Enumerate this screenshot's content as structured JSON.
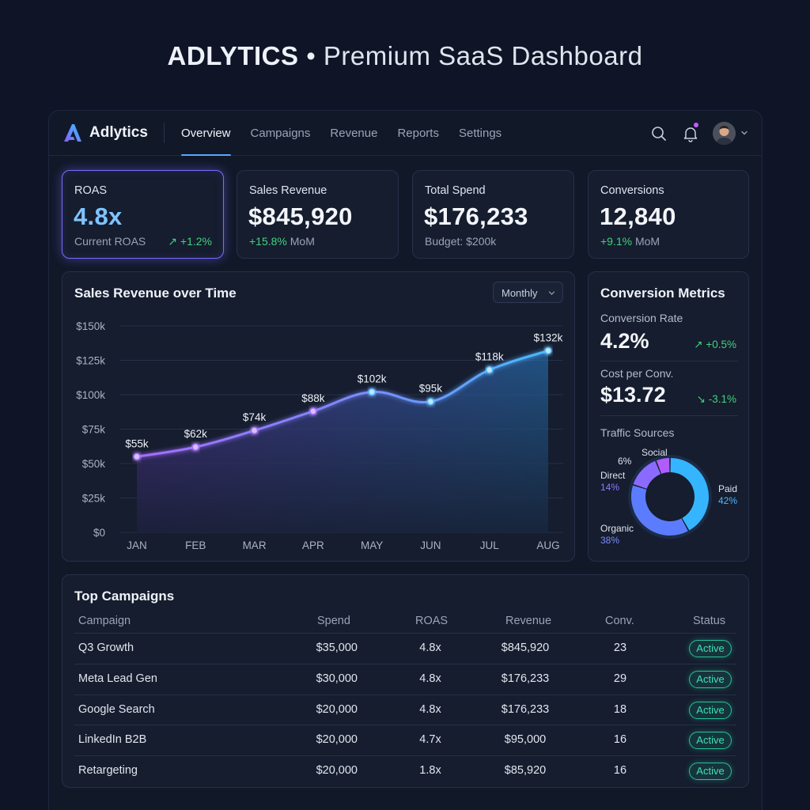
{
  "heading": {
    "brand": "ADLYTICS",
    "separator": "•",
    "rest": "Premium SaaS Dashboard"
  },
  "app": {
    "logo_text": "Adlytics",
    "nav": [
      "Overview",
      "Campaigns",
      "Revenue",
      "Reports",
      "Settings"
    ],
    "active_nav": "Overview",
    "icons": [
      "search-icon",
      "bell-icon",
      "avatar",
      "chevron-down-icon"
    ],
    "accent_color": "#5aa6ff"
  },
  "kpis": {
    "roas": {
      "label": "ROAS",
      "value": "4.8x",
      "sub": "Current ROAS",
      "delta": "↗ +1.2%"
    },
    "revenue": {
      "label": "Sales Revenue",
      "value": "$845,920",
      "delta": "+15.8%",
      "delta_suffix": " MoM"
    },
    "spend": {
      "label": "Total Spend",
      "value": "$176,233",
      "sub": "Budget: $200k"
    },
    "conversions": {
      "label": "Conversions",
      "value": "12,840",
      "delta": "+9.1%",
      "delta_suffix": " MoM"
    }
  },
  "revenue_chart": {
    "title": "Sales Revenue over Time",
    "period": "Monthly",
    "chart_data": {
      "type": "area",
      "categories": [
        "JAN",
        "FEB",
        "MAR",
        "APR",
        "MAY",
        "JUN",
        "JUL",
        "AUG"
      ],
      "values": [
        55,
        62,
        74,
        88,
        102,
        95,
        118,
        132
      ],
      "data_labels": [
        "$55k",
        "$62k",
        "$74k",
        "$88k",
        "$102k",
        "$95k",
        "$118k",
        "$132k"
      ],
      "y_ticks": [
        "$0",
        "$25k",
        "$50k",
        "$75k",
        "$100k",
        "$125k",
        "$150k"
      ],
      "ylim": [
        0,
        150
      ],
      "unit": "k USD",
      "grid": true,
      "line_colors": [
        "#a66bff",
        "#48b8ff"
      ]
    }
  },
  "conversion_metrics": {
    "title": "Conversion Metrics",
    "rate": {
      "label": "Conversion Rate",
      "value": "4.2%",
      "delta": "↗ +0.5%"
    },
    "cpc": {
      "label": "Cost per Conv.",
      "value": "$13.72",
      "delta": "↘ -3.1%"
    },
    "traffic": {
      "title": "Traffic Sources",
      "chart_data": {
        "type": "pie",
        "slices": [
          {
            "name": "Paid",
            "value": 42,
            "label": "42%",
            "color": "#35b5ff"
          },
          {
            "name": "Organic",
            "value": 38,
            "label": "38%",
            "color": "#5c7cff"
          },
          {
            "name": "Direct",
            "value": 14,
            "label": "14%",
            "color": "#8b6bff"
          },
          {
            "name": "Social",
            "value": 6,
            "label": "6%",
            "color": "#b05cff"
          }
        ]
      }
    }
  },
  "campaigns": {
    "title": "Top Campaigns",
    "columns": [
      "Campaign",
      "Spend",
      "ROAS",
      "Revenue",
      "Conv.",
      "Status"
    ],
    "rows": [
      {
        "name": "Q3 Growth",
        "spend": "$35,000",
        "roas": "4.8x",
        "revenue": "$845,920",
        "conv": "23",
        "status": "Active"
      },
      {
        "name": "Meta Lead Gen",
        "spend": "$30,000",
        "roas": "4.8x",
        "revenue": "$176,233",
        "conv": "29",
        "status": "Active"
      },
      {
        "name": "Google Search",
        "spend": "$20,000",
        "roas": "4.8x",
        "revenue": "$176,233",
        "conv": "18",
        "status": "Active"
      },
      {
        "name": "LinkedIn B2B",
        "spend": "$20,000",
        "roas": "4.7x",
        "revenue": "$95,000",
        "conv": "16",
        "status": "Active"
      },
      {
        "name": "Retargeting",
        "spend": "$20,000",
        "roas": "1.8x",
        "revenue": "$85,920",
        "conv": "16",
        "status": "Active"
      }
    ]
  }
}
